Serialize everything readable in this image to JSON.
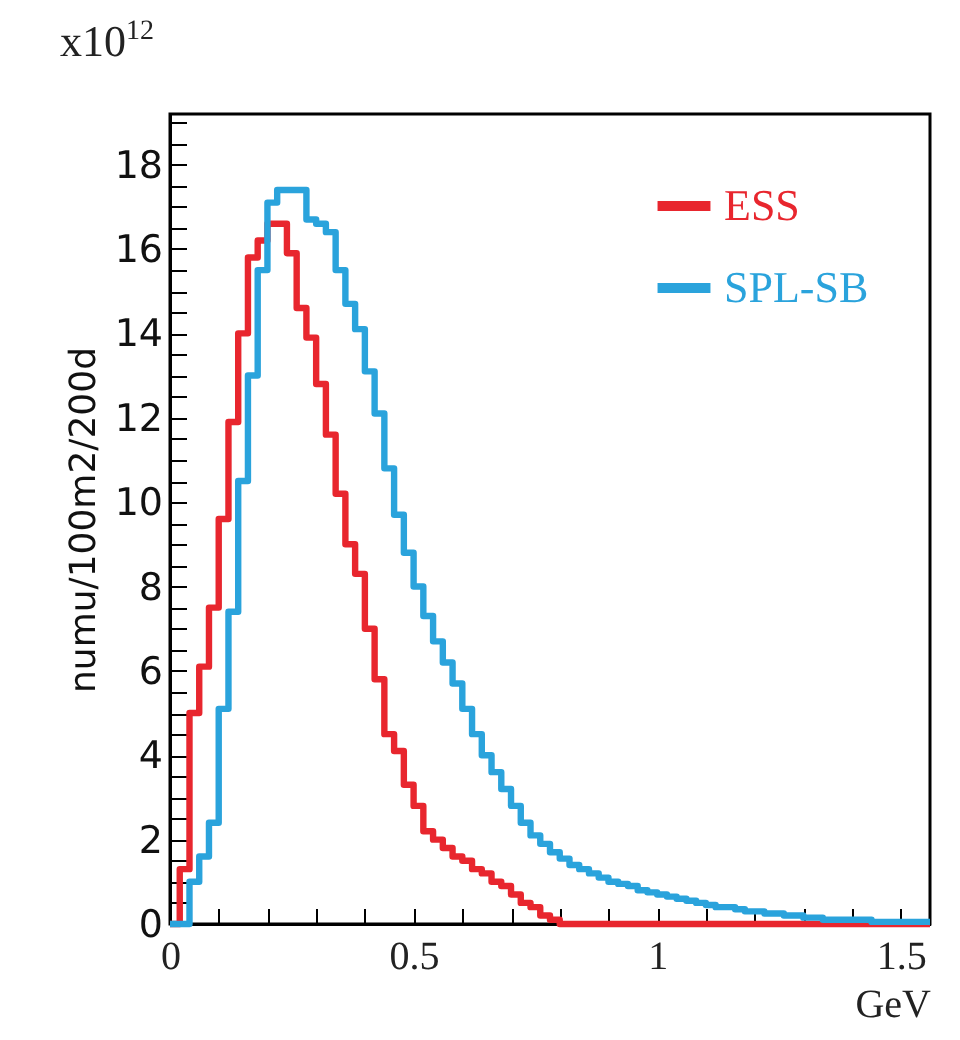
{
  "chart_data": {
    "type": "histogram",
    "xlabel": "GeV",
    "ylabel": "numu/100m2/200d",
    "annotations": [
      "x10$^{12}$"
    ],
    "bins": [
      0,
      0.02,
      0.04,
      0.06,
      0.08,
      0.1,
      0.12,
      0.14,
      0.16,
      0.18,
      0.2,
      0.22,
      0.24,
      0.26,
      0.28,
      0.3,
      0.32,
      0.34,
      0.36,
      0.38,
      0.4,
      0.42,
      0.44,
      0.46,
      0.48,
      0.5,
      0.52,
      0.54,
      0.56,
      0.58,
      0.6,
      0.62,
      0.64,
      0.66,
      0.68,
      0.7,
      0.72,
      0.74,
      0.76,
      0.78,
      0.8,
      0.82,
      0.84,
      0.86,
      0.88,
      0.9,
      0.92,
      0.94,
      0.96,
      0.98,
      1,
      1.02,
      1.04,
      1.06,
      1.08,
      1.1,
      1.12,
      1.14,
      1.16,
      1.18,
      1.2,
      1.22,
      1.24,
      1.26,
      1.28,
      1.3,
      1.32,
      1.34,
      1.36,
      1.38,
      1.4,
      1.42,
      1.44,
      1.46,
      1.48,
      1.5,
      1.52,
      1.54,
      1.56
    ],
    "series": [
      {
        "name": "ESS",
        "color": "#e8262e",
        "values": [
          0,
          1.3,
          5.0,
          6.1,
          7.5,
          9.6,
          11.9,
          14.0,
          15.8,
          16.2,
          16.6,
          16.6,
          15.9,
          14.6,
          13.9,
          12.8,
          11.6,
          10.2,
          9.0,
          8.3,
          7.0,
          5.8,
          4.5,
          4.1,
          3.3,
          2.8,
          2.2,
          2.0,
          1.8,
          1.6,
          1.5,
          1.3,
          1.2,
          1.0,
          0.9,
          0.7,
          0.5,
          0.4,
          0.2,
          0.1,
          0,
          0,
          0,
          0,
          0,
          0,
          0,
          0,
          0,
          0,
          0,
          0,
          0,
          0,
          0,
          0,
          0,
          0,
          0,
          0,
          0,
          0,
          0,
          0,
          0,
          0,
          0,
          0,
          0,
          0,
          0,
          0,
          0,
          0,
          0,
          0,
          0,
          0
        ]
      },
      {
        "name": "SPL-SB",
        "color": "#2aa3dc",
        "values": [
          0,
          0,
          1.0,
          1.6,
          2.4,
          5.1,
          7.4,
          10.5,
          13.0,
          15.5,
          17.1,
          17.4,
          17.4,
          17.4,
          16.7,
          16.6,
          16.4,
          15.5,
          14.7,
          14.1,
          13.1,
          12.1,
          10.8,
          9.7,
          8.8,
          8.0,
          7.3,
          6.7,
          6.2,
          5.7,
          5.1,
          4.5,
          4.0,
          3.6,
          3.2,
          2.8,
          2.4,
          2.1,
          1.9,
          1.7,
          1.55,
          1.4,
          1.3,
          1.2,
          1.1,
          1.0,
          0.95,
          0.9,
          0.8,
          0.75,
          0.7,
          0.65,
          0.6,
          0.55,
          0.5,
          0.45,
          0.4,
          0.4,
          0.35,
          0.3,
          0.3,
          0.25,
          0.25,
          0.2,
          0.2,
          0.15,
          0.15,
          0.1,
          0.1,
          0.1,
          0.1,
          0.1,
          0.05,
          0.05,
          0.05,
          0.05,
          0.05,
          0.05
        ]
      }
    ],
    "xlim": [
      0,
      1.56
    ],
    "ylim": [
      0,
      19.2
    ],
    "xticks": [
      0,
      {
        "value": 0.1,
        "label": null
      },
      {
        "value": 0.2,
        "label": null
      },
      {
        "value": 0.3,
        "label": null
      },
      {
        "value": 0.4,
        "label": null
      },
      0.5,
      {
        "value": 0.6,
        "label": null
      },
      {
        "value": 0.7,
        "label": null
      },
      {
        "value": 0.8,
        "label": null
      },
      {
        "value": 0.9,
        "label": null
      },
      1,
      {
        "value": 1.1,
        "label": null
      },
      {
        "value": 1.2,
        "label": null
      },
      {
        "value": 1.3,
        "label": null
      },
      {
        "value": 1.4,
        "label": null
      },
      1.5
    ],
    "yticks": [
      0,
      {
        "value": 0.5,
        "label": null
      },
      {
        "value": 1,
        "label": null
      },
      {
        "value": 1.5,
        "label": null
      },
      2,
      {
        "value": 2.5,
        "label": null
      },
      {
        "value": 3,
        "label": null
      },
      {
        "value": 3.5,
        "label": null
      },
      4,
      {
        "value": 4.5,
        "label": null
      },
      {
        "value": 5,
        "label": null
      },
      {
        "value": 5.5,
        "label": null
      },
      6,
      {
        "value": 6.5,
        "label": null
      },
      {
        "value": 7,
        "label": null
      },
      {
        "value": 7.5,
        "label": null
      },
      8,
      {
        "value": 8.5,
        "label": null
      },
      {
        "value": 9,
        "label": null
      },
      {
        "value": 9.5,
        "label": null
      },
      10,
      {
        "value": 10.5,
        "label": null
      },
      {
        "value": 11,
        "label": null
      },
      {
        "value": 11.5,
        "label": null
      },
      12,
      {
        "value": 12.5,
        "label": null
      },
      {
        "value": 13,
        "label": null
      },
      {
        "value": 13.5,
        "label": null
      },
      14,
      {
        "value": 14.5,
        "label": null
      },
      {
        "value": 15,
        "label": null
      },
      {
        "value": 15.5,
        "label": null
      },
      16,
      {
        "value": 16.5,
        "label": null
      },
      {
        "value": 17,
        "label": null
      },
      {
        "value": 17.5,
        "label": null
      },
      18,
      {
        "value": 18.5,
        "label": null
      },
      {
        "value": 19,
        "label": null
      }
    ],
    "legend": "top right",
    "grid": false
  }
}
